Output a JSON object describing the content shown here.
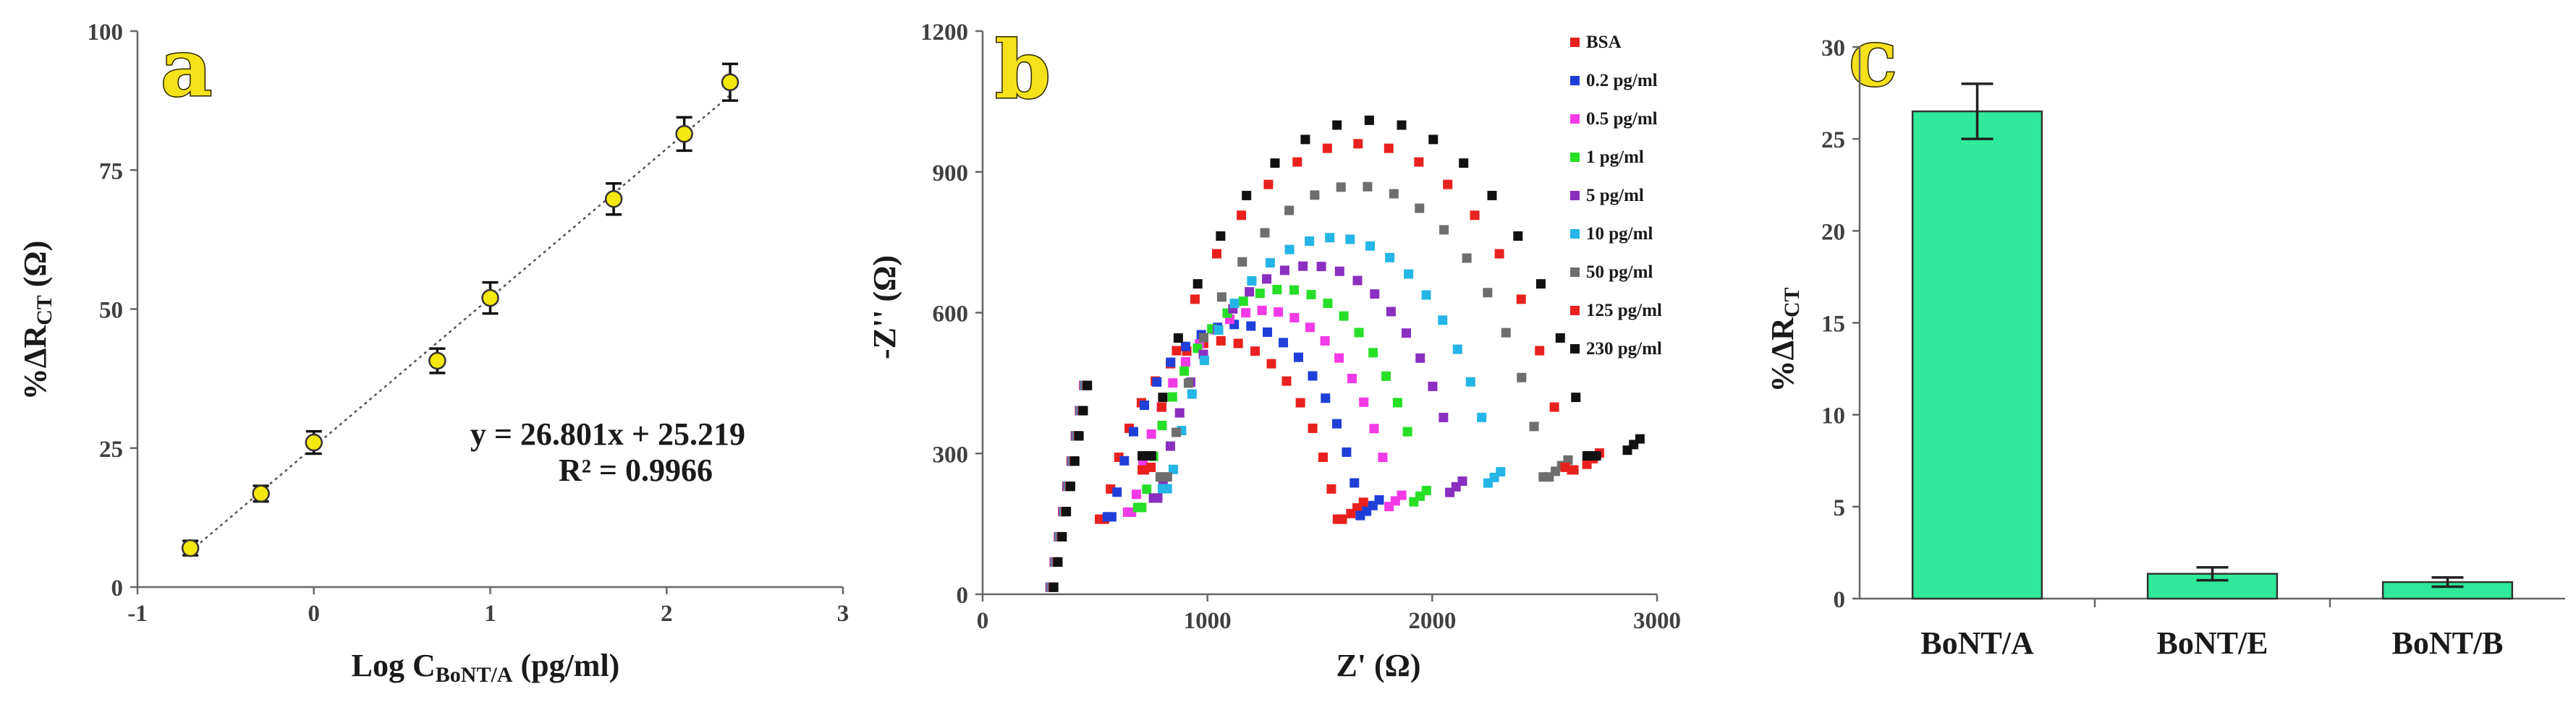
{
  "chart_data": [
    {
      "panel": "a",
      "type": "scatter",
      "xlabel": {
        "main": "Log C",
        "sub": "BoNT/A",
        "rest": " (pg/ml)"
      },
      "ylabel": {
        "main": "%ΔR",
        "sub": "CT",
        "rest": " (Ω)"
      },
      "xlim": [
        -1,
        3
      ],
      "ylim": [
        0,
        100
      ],
      "xticks": [
        -1,
        0,
        1,
        2,
        3
      ],
      "xtick_labels": [
        "-1",
        "0",
        "1",
        "2",
        "3"
      ],
      "yticks": [
        0,
        25,
        50,
        75,
        100
      ],
      "ytick_labels": [
        "0",
        "25",
        "50",
        "75",
        "100"
      ],
      "points": [
        {
          "x": -0.7,
          "y": 7.0,
          "err": 1.3
        },
        {
          "x": -0.3,
          "y": 16.8,
          "err": 1.4
        },
        {
          "x": 0.0,
          "y": 26.0,
          "err": 2.0
        },
        {
          "x": 0.7,
          "y": 40.7,
          "err": 2.2
        },
        {
          "x": 1.0,
          "y": 52.0,
          "err": 2.8
        },
        {
          "x": 1.7,
          "y": 69.8,
          "err": 2.8
        },
        {
          "x": 2.1,
          "y": 81.5,
          "err": 3.0
        },
        {
          "x": 2.36,
          "y": 90.8,
          "err": 3.3
        }
      ],
      "fit": {
        "slope": 26.801,
        "intercept": 25.219,
        "x_range": [
          -0.7,
          2.36
        ]
      },
      "equation": "y = 26.801x + 25.219",
      "r_squared": "R² = 0.9966",
      "marker_color": "#f6e70e"
    },
    {
      "panel": "b",
      "type": "scatter",
      "xlabel": "Z' (Ω)",
      "ylabel": "-Z'' (Ω)",
      "xlim": [
        0,
        3000
      ],
      "ylim": [
        0,
        1200
      ],
      "xticks": [
        0,
        1000,
        2000,
        3000
      ],
      "xtick_labels": [
        "0",
        "1000",
        "2000",
        "3000"
      ],
      "yticks": [
        0,
        300,
        600,
        900,
        1200
      ],
      "ytick_labels": [
        "0",
        "300",
        "600",
        "900",
        "1200"
      ],
      "curve_model": "Nyquist: arc of radius r centred at (c, 0) starting at the Warburg knee, then linear tail; values estimated",
      "series": [
        {
          "name": "BSA",
          "color": "#e8211f",
          "c": 1060,
          "r": 540,
          "tail_end": [
            1650,
            160
          ]
        },
        {
          "name": "0.2 pg/ml",
          "color": "#1f3fd8",
          "c": 1130,
          "r": 575,
          "tail_end": [
            1720,
            165
          ]
        },
        {
          "name": "0.5 pg/ml",
          "color": "#f23ae6",
          "c": 1250,
          "r": 605,
          "tail_end": [
            1820,
            175
          ]
        },
        {
          "name": "1 pg/ml",
          "color": "#27df27",
          "c": 1340,
          "r": 650,
          "tail_end": [
            1930,
            185
          ]
        },
        {
          "name": "5 pg/ml",
          "color": "#8a2fc0",
          "c": 1460,
          "r": 700,
          "tail_end": [
            2090,
            205
          ]
        },
        {
          "name": "10 pg/ml",
          "color": "#25b5e6",
          "c": 1560,
          "r": 760,
          "tail_end": [
            2260,
            225
          ]
        },
        {
          "name": "50 pg/ml",
          "color": "#6e6e6e",
          "c": 1660,
          "r": 870,
          "tail_end": [
            2560,
            250
          ]
        },
        {
          "name": "125 pg/ml",
          "color": "#e8211f",
          "c": 1670,
          "r": 960,
          "tail_end": [
            2700,
            265
          ]
        },
        {
          "name": "230 pg/ml",
          "color": "#111111",
          "c": 1720,
          "r": 1010,
          "tail_end": [
            2880,
            295
          ]
        }
      ]
    },
    {
      "panel": "c",
      "type": "bar",
      "categories": [
        "BoNT/A",
        "BoNT/E",
        "BoNT/B"
      ],
      "values": [
        26.5,
        1.35,
        0.9
      ],
      "errors": [
        1.5,
        0.35,
        0.25
      ],
      "ylabel": {
        "main": "%ΔR",
        "sub": "CT"
      },
      "ylim": [
        0,
        30
      ],
      "yticks": [
        0,
        5,
        10,
        15,
        20,
        25,
        30
      ],
      "ytick_labels": [
        "0",
        "5",
        "10",
        "15",
        "20",
        "25",
        "30"
      ],
      "bar_color": "#2eea9a"
    }
  ]
}
